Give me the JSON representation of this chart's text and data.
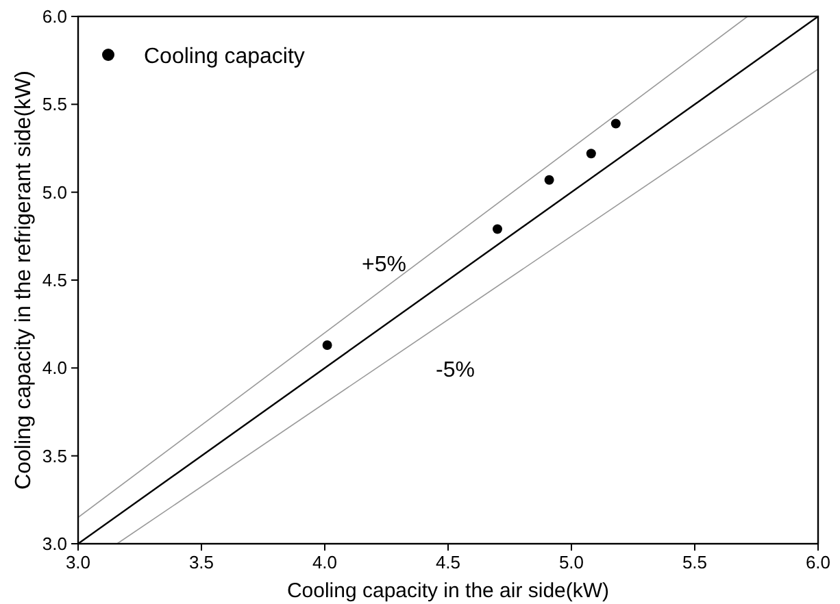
{
  "chart_data": {
    "type": "scatter",
    "xlabel": "Cooling capacity in the air side(kW)",
    "ylabel": "Cooling capacity in the refrigerant side(kW)",
    "xlim": [
      3,
      6
    ],
    "ylim": [
      3,
      6
    ],
    "xticks": [
      {
        "value": 3,
        "label": "3.0"
      },
      {
        "value": 3.5,
        "label": "3.5"
      },
      {
        "value": 4,
        "label": "4.0"
      },
      {
        "value": 4.5,
        "label": "4.5"
      },
      {
        "value": 5,
        "label": "5.0"
      },
      {
        "value": 5.5,
        "label": "5.5"
      },
      {
        "value": 6,
        "label": "6.0"
      }
    ],
    "yticks": [
      {
        "value": 3,
        "label": "3.0"
      },
      {
        "value": 3.5,
        "label": "3.5"
      },
      {
        "value": 4,
        "label": "4.0"
      },
      {
        "value": 4.5,
        "label": "4.5"
      },
      {
        "value": 5,
        "label": "5.0"
      },
      {
        "value": 5.5,
        "label": "5.5"
      },
      {
        "value": 6,
        "label": "6.0"
      }
    ],
    "series": [
      {
        "name": "Cooling capacity",
        "marker": "circle",
        "color": "#000000",
        "x": [
          4.01,
          4.7,
          4.91,
          5.08,
          5.18
        ],
        "values": [
          4.13,
          4.79,
          5.07,
          5.22,
          5.39
        ]
      },
      {
        "type": "line",
        "color": "#000000",
        "x": [
          3,
          6
        ],
        "values": [
          3,
          6
        ]
      },
      {
        "type": "line",
        "color": "#999999",
        "x": [
          3,
          5.714
        ],
        "values": [
          3.15,
          6
        ]
      },
      {
        "type": "line",
        "color": "#999999",
        "x": [
          3.158,
          6
        ],
        "values": [
          3,
          5.7
        ]
      }
    ],
    "annotations": [
      "+5%",
      "-5%"
    ],
    "legend": "top left",
    "grid": false
  }
}
